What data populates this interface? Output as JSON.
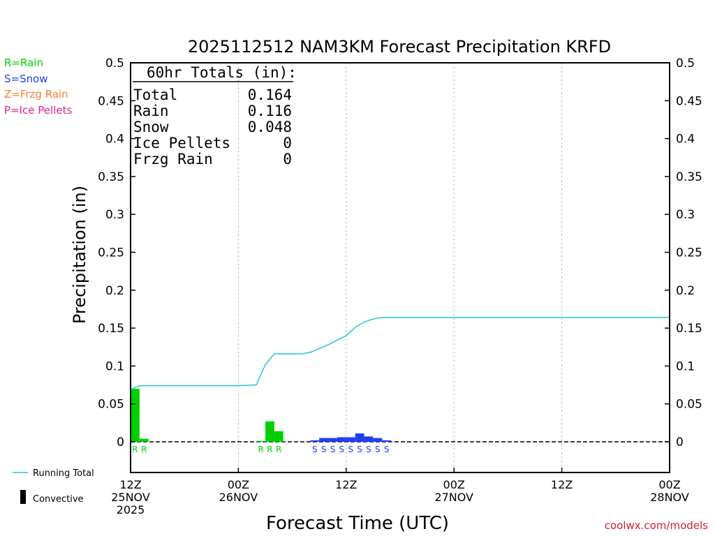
{
  "legend": {
    "rain": "R=Rain",
    "snow": "S=Snow",
    "frzg": "Z=Frzg Rain",
    "ice": "P=Ice Pellets",
    "running_total": "Running Total",
    "convective": "Convective"
  },
  "colors": {
    "rain": "#00d000",
    "snow": "#2040f0",
    "frzg": "#f08030",
    "ice": "#e0208f",
    "running_total": "#20c8d0",
    "credit": "#d0202a"
  },
  "totals_box": {
    "header": "60hr Totals (in):",
    "rows": [
      {
        "label": "Total",
        "value": "0.164"
      },
      {
        "label": "Rain",
        "value": "0.116"
      },
      {
        "label": "Snow",
        "value": "0.048"
      },
      {
        "label": "Ice Pellets",
        "value": "0"
      },
      {
        "label": "Frzg Rain",
        "value": "0"
      }
    ]
  },
  "credit": "coolwx.com/models",
  "chart_data": {
    "type": "bar",
    "title": "2025112512 NAM3KM Forecast Precipitation KRFD",
    "xlabel": "Forecast Time (UTC)",
    "ylabel": "Precipitation (in)",
    "ylim": [
      -0.04,
      0.5
    ],
    "xlim_hours": [
      0,
      60
    ],
    "yticks": [
      "0.5",
      "0.45",
      "0.4",
      "0.35",
      "0.3",
      "0.25",
      "0.2",
      "0.15",
      "0.1",
      "0.05",
      "0"
    ],
    "ytick_values": [
      0.5,
      0.45,
      0.4,
      0.35,
      0.3,
      0.25,
      0.2,
      0.15,
      0.1,
      0.05,
      0
    ],
    "xticks": [
      {
        "hour": 0,
        "lines": [
          "12Z",
          "25NOV",
          "2025"
        ]
      },
      {
        "hour": 12,
        "lines": [
          "00Z",
          "26NOV"
        ]
      },
      {
        "hour": 24,
        "lines": [
          "12Z"
        ]
      },
      {
        "hour": 36,
        "lines": [
          "00Z",
          "27NOV"
        ]
      },
      {
        "hour": 48,
        "lines": [
          "12Z"
        ]
      },
      {
        "hour": 60,
        "lines": [
          "00Z",
          "28NOV"
        ]
      }
    ],
    "grid": "vertical dotted at tick positions",
    "bars": [
      {
        "start": 0,
        "end": 1,
        "value": 0.07,
        "type": "R"
      },
      {
        "start": 1,
        "end": 2,
        "value": 0.004,
        "type": "R"
      },
      {
        "start": 14,
        "end": 15,
        "value": 0.001,
        "type": "R"
      },
      {
        "start": 15,
        "end": 16,
        "value": 0.027,
        "type": "R"
      },
      {
        "start": 16,
        "end": 17,
        "value": 0.014,
        "type": "R"
      },
      {
        "start": 20,
        "end": 21,
        "value": 0.002,
        "type": "S"
      },
      {
        "start": 21,
        "end": 22,
        "value": 0.005,
        "type": "S"
      },
      {
        "start": 22,
        "end": 23,
        "value": 0.005,
        "type": "S"
      },
      {
        "start": 23,
        "end": 24,
        "value": 0.006,
        "type": "S"
      },
      {
        "start": 24,
        "end": 25,
        "value": 0.006,
        "type": "S"
      },
      {
        "start": 25,
        "end": 26,
        "value": 0.011,
        "type": "S"
      },
      {
        "start": 26,
        "end": 27,
        "value": 0.007,
        "type": "S"
      },
      {
        "start": 27,
        "end": 28,
        "value": 0.005,
        "type": "S"
      },
      {
        "start": 28,
        "end": 29,
        "value": 0.002,
        "type": "S"
      }
    ],
    "series": [
      {
        "name": "Running Total",
        "x": [
          0,
          1,
          2,
          12,
          14,
          15,
          16,
          17,
          19,
          20,
          21,
          22,
          23,
          24,
          25,
          26,
          27,
          28,
          29,
          60
        ],
        "values": [
          0.069,
          0.074,
          0.074,
          0.074,
          0.075,
          0.102,
          0.116,
          0.116,
          0.116,
          0.118,
          0.123,
          0.128,
          0.134,
          0.14,
          0.151,
          0.158,
          0.162,
          0.164,
          0.164,
          0.164
        ]
      }
    ],
    "zero_line": "dashed"
  }
}
